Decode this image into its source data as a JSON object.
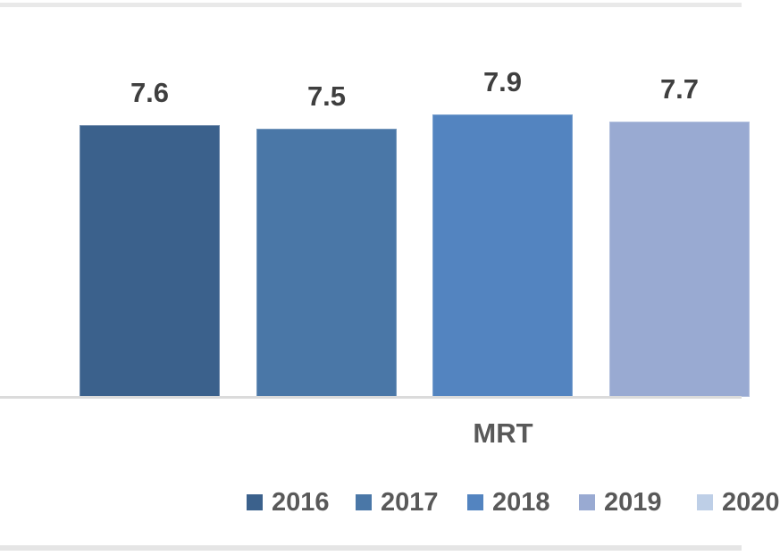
{
  "chart_data": {
    "type": "bar",
    "title": "",
    "categories": [
      "MRT"
    ],
    "series": [
      {
        "name": "2016",
        "values": [
          7.6
        ],
        "color": "#3B618C"
      },
      {
        "name": "2017",
        "values": [
          7.5
        ],
        "color": "#4A77A7"
      },
      {
        "name": "2018",
        "values": [
          7.9
        ],
        "color": "#5384C0"
      },
      {
        "name": "2019",
        "values": [
          7.7
        ],
        "color": "#99AAD2"
      },
      {
        "name": "2020",
        "values": [
          null
        ],
        "color": "#BECFE7"
      }
    ],
    "value_labels": [
      "7.6",
      "7.5",
      "7.9",
      "7.7"
    ],
    "xlabel": "MRT",
    "ylabel": "",
    "y_axis_visible": false,
    "gridlines": false,
    "legend_position": "bottom",
    "legend_entries": [
      "2016",
      "2017",
      "2018",
      "2019",
      "2020"
    ]
  },
  "colors": {
    "axis_line": "#DBDBDB",
    "frame_border": "#E9E9E9",
    "value_label_text": "#3F3F3F",
    "axis_label_text": "#595959",
    "legend_text": "#595959"
  }
}
